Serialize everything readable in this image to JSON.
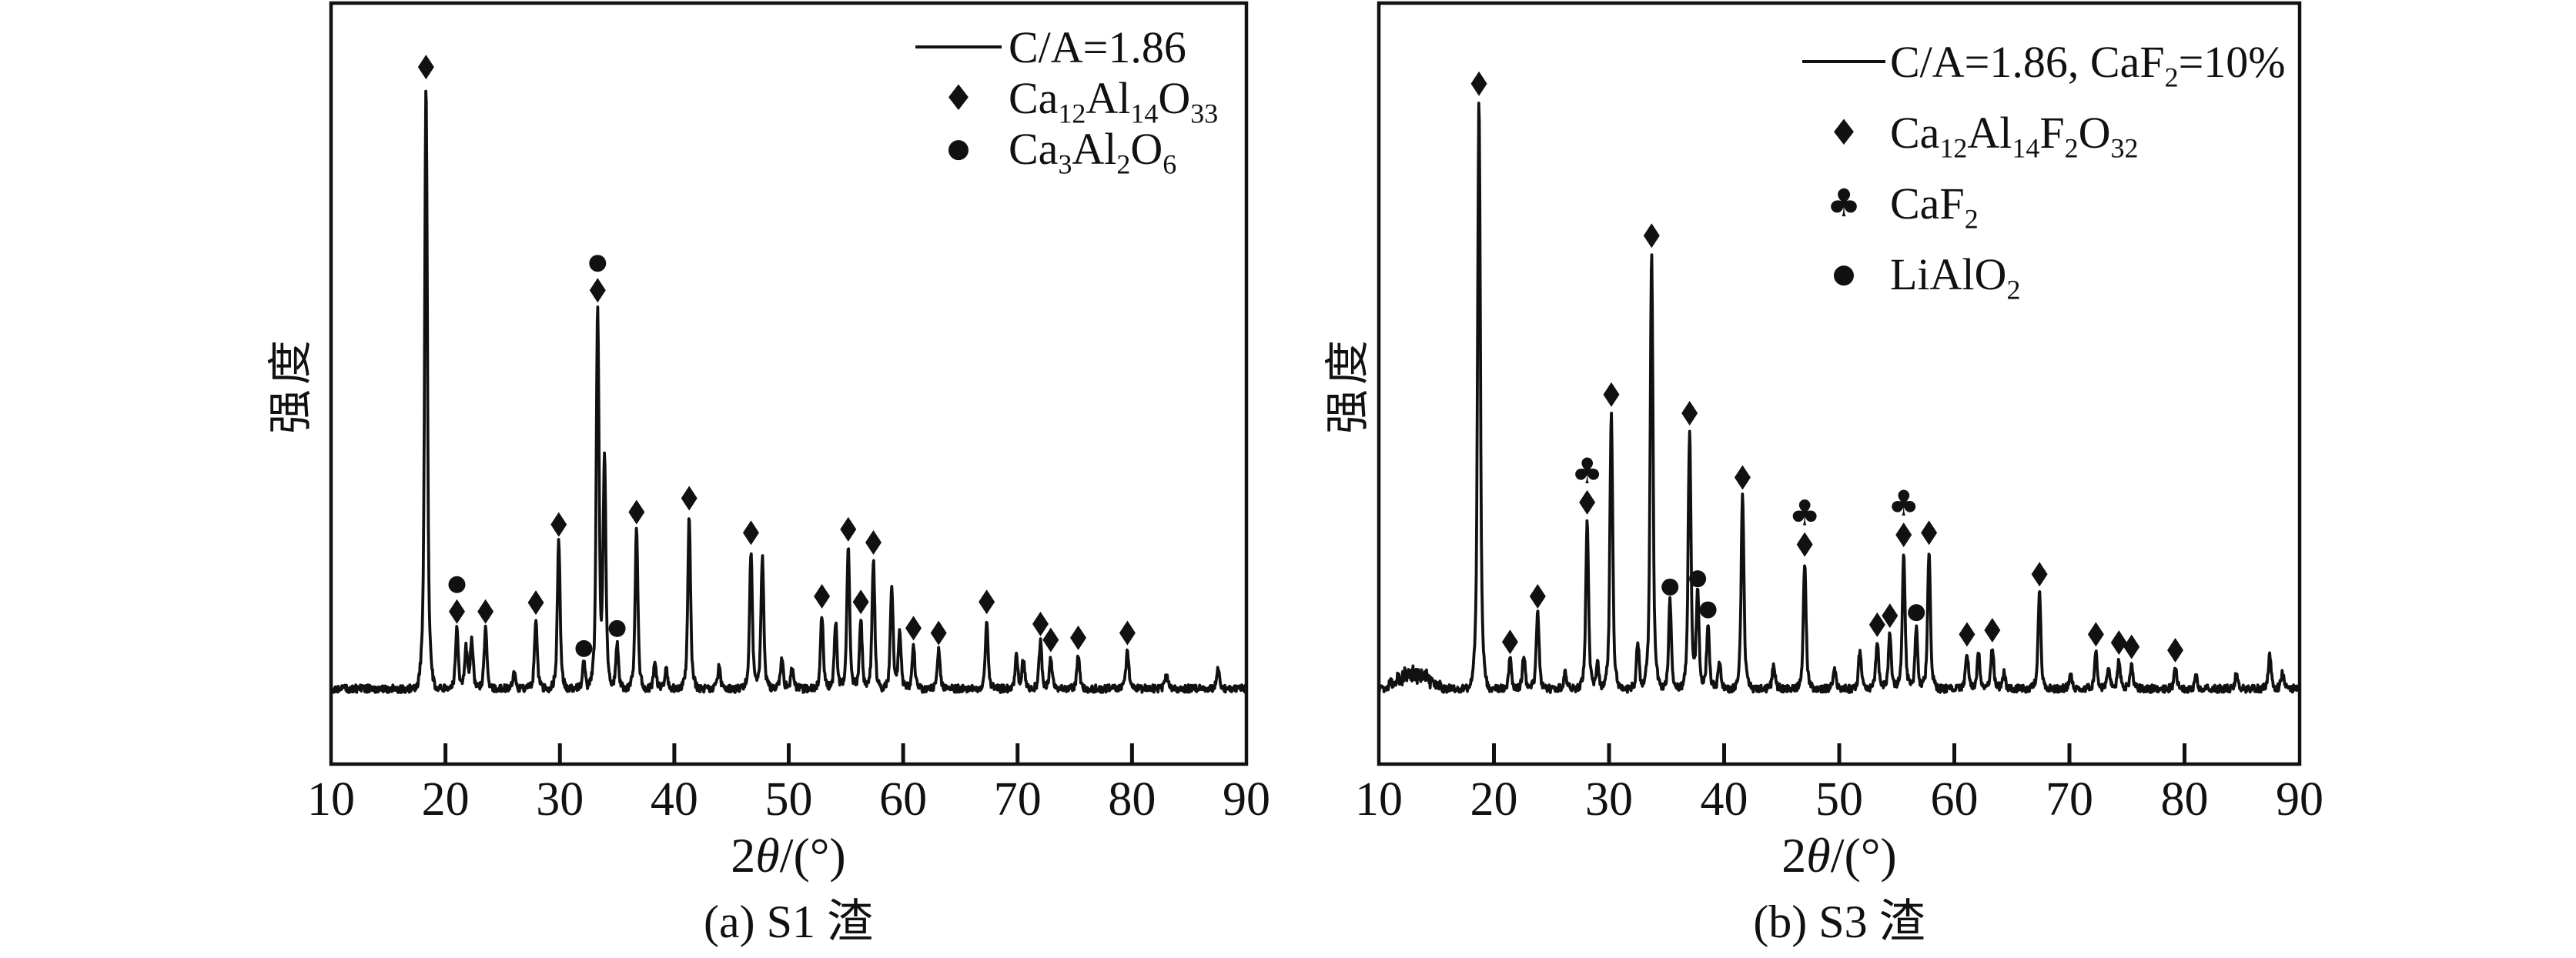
{
  "chart_data": {
    "type": "line",
    "kind": "xrd-pattern-pair",
    "xlabel": "2θ/(°)",
    "ylabel": "强度",
    "xlim": [
      10,
      90
    ],
    "x_ticks": [
      10,
      20,
      30,
      40,
      50,
      60,
      70,
      80,
      90
    ],
    "y_axis": "intensity, arbitrary units (no numeric ticks shown)",
    "grid": false,
    "line_color": "#111111",
    "background_color": "#ffffff",
    "legend_position": "top-right-inside",
    "marker_codes": {
      "d": "diamond",
      "c": "circle",
      "k": "club"
    },
    "marker_glyphs": {
      "diamond": "♦",
      "circle": "●",
      "club": "♣"
    },
    "peak_fields": [
      "t = 2theta_deg",
      "i = relative_intensity_0_to_1",
      "m = markers_bottom_to_top"
    ],
    "panels": [
      {
        "id": "a",
        "caption": "(a) S1 渣",
        "legend": {
          "line_label": "C/A=1.86",
          "entries": [
            {
              "marker": "diamond",
              "label": "Ca_{12}Al_{14}O_{33}"
            },
            {
              "marker": "circle",
              "label": "Ca_{3}Al_{2}O_{6}"
            }
          ]
        },
        "peaks": [
          {
            "t": 18.3,
            "i": 0.874,
            "m": [
              "d"
            ]
          },
          {
            "t": 21.0,
            "i": 0.086,
            "m": [
              "d",
              "c"
            ]
          },
          {
            "t": 21.8,
            "i": 0.058,
            "m": []
          },
          {
            "t": 22.3,
            "i": 0.069,
            "m": []
          },
          {
            "t": 23.5,
            "i": 0.086,
            "m": [
              "d"
            ]
          },
          {
            "t": 26.0,
            "i": 0.022,
            "m": []
          },
          {
            "t": 27.9,
            "i": 0.099,
            "m": [
              "d"
            ]
          },
          {
            "t": 29.9,
            "i": 0.212,
            "m": [
              "d"
            ]
          },
          {
            "t": 32.1,
            "i": 0.038,
            "m": [
              "c"
            ]
          },
          {
            "t": 33.3,
            "i": 0.551,
            "m": [
              "d",
              "c"
            ]
          },
          {
            "t": 33.9,
            "i": 0.33,
            "m": []
          },
          {
            "t": 35.0,
            "i": 0.067,
            "m": [
              "c"
            ]
          },
          {
            "t": 36.7,
            "i": 0.23,
            "m": [
              "d"
            ]
          },
          {
            "t": 38.3,
            "i": 0.04,
            "m": []
          },
          {
            "t": 39.3,
            "i": 0.028,
            "m": []
          },
          {
            "t": 41.3,
            "i": 0.25,
            "m": [
              "d"
            ]
          },
          {
            "t": 43.9,
            "i": 0.03,
            "m": []
          },
          {
            "t": 46.7,
            "i": 0.2,
            "m": [
              "d"
            ]
          },
          {
            "t": 47.7,
            "i": 0.19,
            "m": []
          },
          {
            "t": 49.4,
            "i": 0.045,
            "m": []
          },
          {
            "t": 50.3,
            "i": 0.03,
            "m": []
          },
          {
            "t": 52.9,
            "i": 0.108,
            "m": [
              "d"
            ]
          },
          {
            "t": 54.1,
            "i": 0.097,
            "m": []
          },
          {
            "t": 55.2,
            "i": 0.205,
            "m": [
              "d"
            ]
          },
          {
            "t": 56.3,
            "i": 0.1,
            "m": [
              "d"
            ]
          },
          {
            "t": 57.4,
            "i": 0.186,
            "m": [
              "d"
            ]
          },
          {
            "t": 59.0,
            "i": 0.15,
            "m": []
          },
          {
            "t": 59.7,
            "i": 0.085,
            "m": []
          },
          {
            "t": 60.9,
            "i": 0.062,
            "m": [
              "d"
            ]
          },
          {
            "t": 63.1,
            "i": 0.055,
            "m": [
              "d"
            ]
          },
          {
            "t": 67.3,
            "i": 0.1,
            "m": [
              "d"
            ]
          },
          {
            "t": 69.9,
            "i": 0.048,
            "m": []
          },
          {
            "t": 70.5,
            "i": 0.04,
            "m": []
          },
          {
            "t": 72.0,
            "i": 0.068,
            "m": [
              "d"
            ]
          },
          {
            "t": 72.9,
            "i": 0.045,
            "m": [
              "d"
            ]
          },
          {
            "t": 75.3,
            "i": 0.048,
            "m": [
              "d"
            ]
          },
          {
            "t": 79.6,
            "i": 0.055,
            "m": [
              "d"
            ]
          },
          {
            "t": 83.0,
            "i": 0.022,
            "m": []
          },
          {
            "t": 87.5,
            "i": 0.03,
            "m": []
          }
        ]
      },
      {
        "id": "b",
        "caption": "(b) S3 渣",
        "background_bump": {
          "range_2theta": [
            10.5,
            15.5
          ],
          "note": "slightly elevated noisy background visible at low angle"
        },
        "legend": {
          "line_label": "C/A=1.86, CaF_{2}=10%",
          "entries": [
            {
              "marker": "diamond",
              "label": "Ca_{12}Al_{14}F_{2}O_{32}"
            },
            {
              "marker": "club",
              "label": "CaF_{2}"
            },
            {
              "marker": "circle",
              "label": "LiAlO_{2}"
            }
          ]
        },
        "peaks": [
          {
            "t": 18.7,
            "i": 0.85,
            "m": [
              "d"
            ]
          },
          {
            "t": 21.4,
            "i": 0.042,
            "m": [
              "d"
            ]
          },
          {
            "t": 22.6,
            "i": 0.05,
            "m": []
          },
          {
            "t": 23.8,
            "i": 0.108,
            "m": [
              "d"
            ]
          },
          {
            "t": 26.2,
            "i": 0.022,
            "m": []
          },
          {
            "t": 28.1,
            "i": 0.244,
            "m": [
              "d",
              "k"
            ]
          },
          {
            "t": 29.0,
            "i": 0.036,
            "m": []
          },
          {
            "t": 30.2,
            "i": 0.4,
            "m": [
              "d"
            ]
          },
          {
            "t": 32.5,
            "i": 0.067,
            "m": []
          },
          {
            "t": 33.7,
            "i": 0.63,
            "m": [
              "d"
            ]
          },
          {
            "t": 35.3,
            "i": 0.127,
            "m": [
              "c"
            ]
          },
          {
            "t": 37.0,
            "i": 0.373,
            "m": [
              "d"
            ]
          },
          {
            "t": 37.7,
            "i": 0.139,
            "m": [
              "c"
            ]
          },
          {
            "t": 38.6,
            "i": 0.094,
            "m": [
              "c"
            ]
          },
          {
            "t": 39.6,
            "i": 0.04,
            "m": []
          },
          {
            "t": 41.6,
            "i": 0.28,
            "m": [
              "d"
            ]
          },
          {
            "t": 44.3,
            "i": 0.036,
            "m": []
          },
          {
            "t": 47.0,
            "i": 0.183,
            "m": [
              "d",
              "k"
            ]
          },
          {
            "t": 49.6,
            "i": 0.028,
            "m": []
          },
          {
            "t": 51.8,
            "i": 0.055,
            "m": []
          },
          {
            "t": 53.3,
            "i": 0.067,
            "m": [
              "d"
            ]
          },
          {
            "t": 54.4,
            "i": 0.08,
            "m": [
              "d"
            ]
          },
          {
            "t": 55.6,
            "i": 0.197,
            "m": [
              "d",
              "k"
            ]
          },
          {
            "t": 56.7,
            "i": 0.09,
            "m": [
              "c"
            ]
          },
          {
            "t": 57.8,
            "i": 0.2,
            "m": [
              "d"
            ]
          },
          {
            "t": 61.1,
            "i": 0.053,
            "m": [
              "d"
            ]
          },
          {
            "t": 62.1,
            "i": 0.053,
            "m": []
          },
          {
            "t": 63.3,
            "i": 0.059,
            "m": [
              "d"
            ]
          },
          {
            "t": 64.3,
            "i": 0.024,
            "m": []
          },
          {
            "t": 67.4,
            "i": 0.14,
            "m": [
              "d"
            ]
          },
          {
            "t": 70.1,
            "i": 0.022,
            "m": []
          },
          {
            "t": 72.3,
            "i": 0.053,
            "m": [
              "d"
            ]
          },
          {
            "t": 73.4,
            "i": 0.033,
            "m": []
          },
          {
            "t": 74.3,
            "i": 0.041,
            "m": [
              "d"
            ]
          },
          {
            "t": 75.4,
            "i": 0.035,
            "m": [
              "d"
            ]
          },
          {
            "t": 79.2,
            "i": 0.03,
            "m": [
              "d"
            ]
          },
          {
            "t": 81.0,
            "i": 0.018,
            "m": []
          },
          {
            "t": 84.5,
            "i": 0.02,
            "m": []
          },
          {
            "t": 87.4,
            "i": 0.047,
            "m": []
          },
          {
            "t": 88.5,
            "i": 0.024,
            "m": []
          }
        ]
      }
    ]
  }
}
